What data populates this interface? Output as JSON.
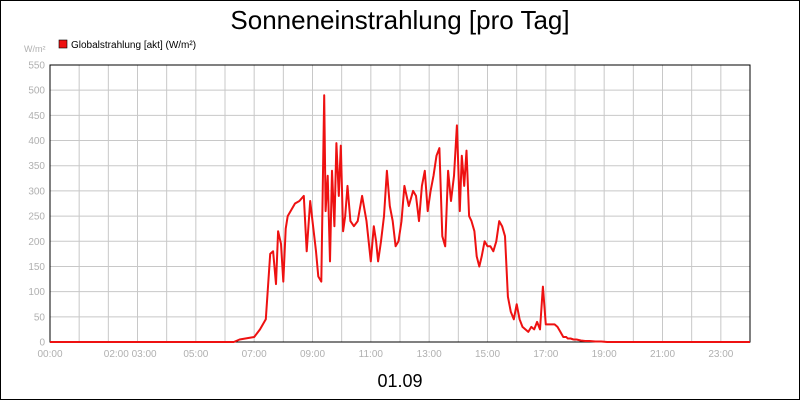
{
  "chart_data": {
    "type": "line",
    "title": "Sonneneinstrahlung [pro Tag]",
    "xlabel": "01.09",
    "ylabel": "W/m²",
    "ylim": [
      0,
      550
    ],
    "xlim": [
      0,
      24
    ],
    "y_ticks": [
      0,
      50,
      100,
      150,
      200,
      250,
      300,
      350,
      400,
      450,
      500,
      550
    ],
    "x_tick_labels": [
      {
        "x": 0,
        "label": "00:00"
      },
      {
        "x": 2.75,
        "label": "02:00 03:00"
      },
      {
        "x": 5,
        "label": "05:00"
      },
      {
        "x": 7,
        "label": "07:00"
      },
      {
        "x": 9,
        "label": "09:00"
      },
      {
        "x": 11,
        "label": "11:00"
      },
      {
        "x": 13,
        "label": "13:00"
      },
      {
        "x": 15,
        "label": "15:00"
      },
      {
        "x": 17,
        "label": "17:00"
      },
      {
        "x": 19,
        "label": "19:00"
      },
      {
        "x": 21,
        "label": "21:00"
      },
      {
        "x": 23,
        "label": "23:00"
      }
    ],
    "grid": true,
    "legend_position": "top-left",
    "series": [
      {
        "name": "Globalstrahlung [akt] (W/m²)",
        "color": "#ee1111",
        "x": [
          0,
          6.3,
          6.5,
          6.8,
          7.0,
          7.2,
          7.4,
          7.55,
          7.65,
          7.75,
          7.82,
          7.92,
          8.0,
          8.08,
          8.15,
          8.25,
          8.4,
          8.55,
          8.7,
          8.8,
          8.92,
          9.0,
          9.12,
          9.2,
          9.3,
          9.4,
          9.45,
          9.52,
          9.6,
          9.67,
          9.75,
          9.82,
          9.9,
          9.97,
          10.05,
          10.12,
          10.2,
          10.3,
          10.42,
          10.55,
          10.7,
          10.85,
          11.0,
          11.1,
          11.18,
          11.25,
          11.35,
          11.45,
          11.55,
          11.65,
          11.75,
          11.85,
          11.95,
          12.05,
          12.15,
          12.3,
          12.45,
          12.55,
          12.65,
          12.75,
          12.85,
          12.95,
          13.05,
          13.15,
          13.25,
          13.35,
          13.45,
          13.55,
          13.65,
          13.75,
          13.85,
          13.95,
          14.05,
          14.12,
          14.2,
          14.28,
          14.37,
          14.45,
          14.55,
          14.63,
          14.72,
          14.8,
          14.9,
          15.0,
          15.1,
          15.2,
          15.3,
          15.4,
          15.5,
          15.6,
          15.7,
          15.8,
          15.9,
          16.0,
          16.1,
          16.2,
          16.3,
          16.4,
          16.5,
          16.6,
          16.7,
          16.8,
          16.9,
          17.0,
          17.1,
          17.2,
          17.3,
          17.4,
          17.5,
          17.6,
          17.7,
          17.75,
          17.85,
          17.95,
          18.05,
          18.2,
          18.35,
          18.5,
          18.7,
          18.9,
          19.1,
          19.3,
          19.5,
          19.7,
          20.0,
          20.3,
          24.0
        ],
        "values": [
          0,
          0,
          5,
          8,
          10,
          25,
          45,
          175,
          180,
          115,
          220,
          195,
          120,
          225,
          250,
          260,
          275,
          280,
          290,
          180,
          280,
          240,
          180,
          130,
          120,
          490,
          260,
          330,
          160,
          340,
          230,
          395,
          290,
          390,
          220,
          250,
          310,
          240,
          230,
          240,
          290,
          240,
          160,
          230,
          200,
          160,
          200,
          250,
          340,
          270,
          240,
          190,
          200,
          240,
          310,
          270,
          300,
          290,
          240,
          310,
          340,
          260,
          300,
          330,
          370,
          385,
          210,
          190,
          340,
          280,
          330,
          430,
          260,
          370,
          310,
          380,
          250,
          240,
          220,
          170,
          150,
          170,
          200,
          190,
          190,
          180,
          200,
          240,
          230,
          210,
          90,
          60,
          45,
          75,
          45,
          30,
          25,
          20,
          30,
          25,
          40,
          25,
          110,
          35,
          35,
          35,
          35,
          30,
          20,
          10,
          10,
          7,
          7,
          5,
          5,
          3,
          2,
          2,
          1,
          1,
          0,
          0,
          0,
          0,
          0,
          0,
          0
        ]
      }
    ]
  }
}
